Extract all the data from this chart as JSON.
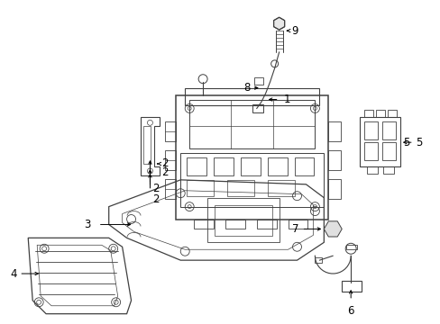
{
  "bg_color": "#ffffff",
  "line_color": "#404040",
  "label_color": "#000000",
  "figsize": [
    4.89,
    3.6
  ],
  "dpi": 100,
  "font_size": 8.5
}
